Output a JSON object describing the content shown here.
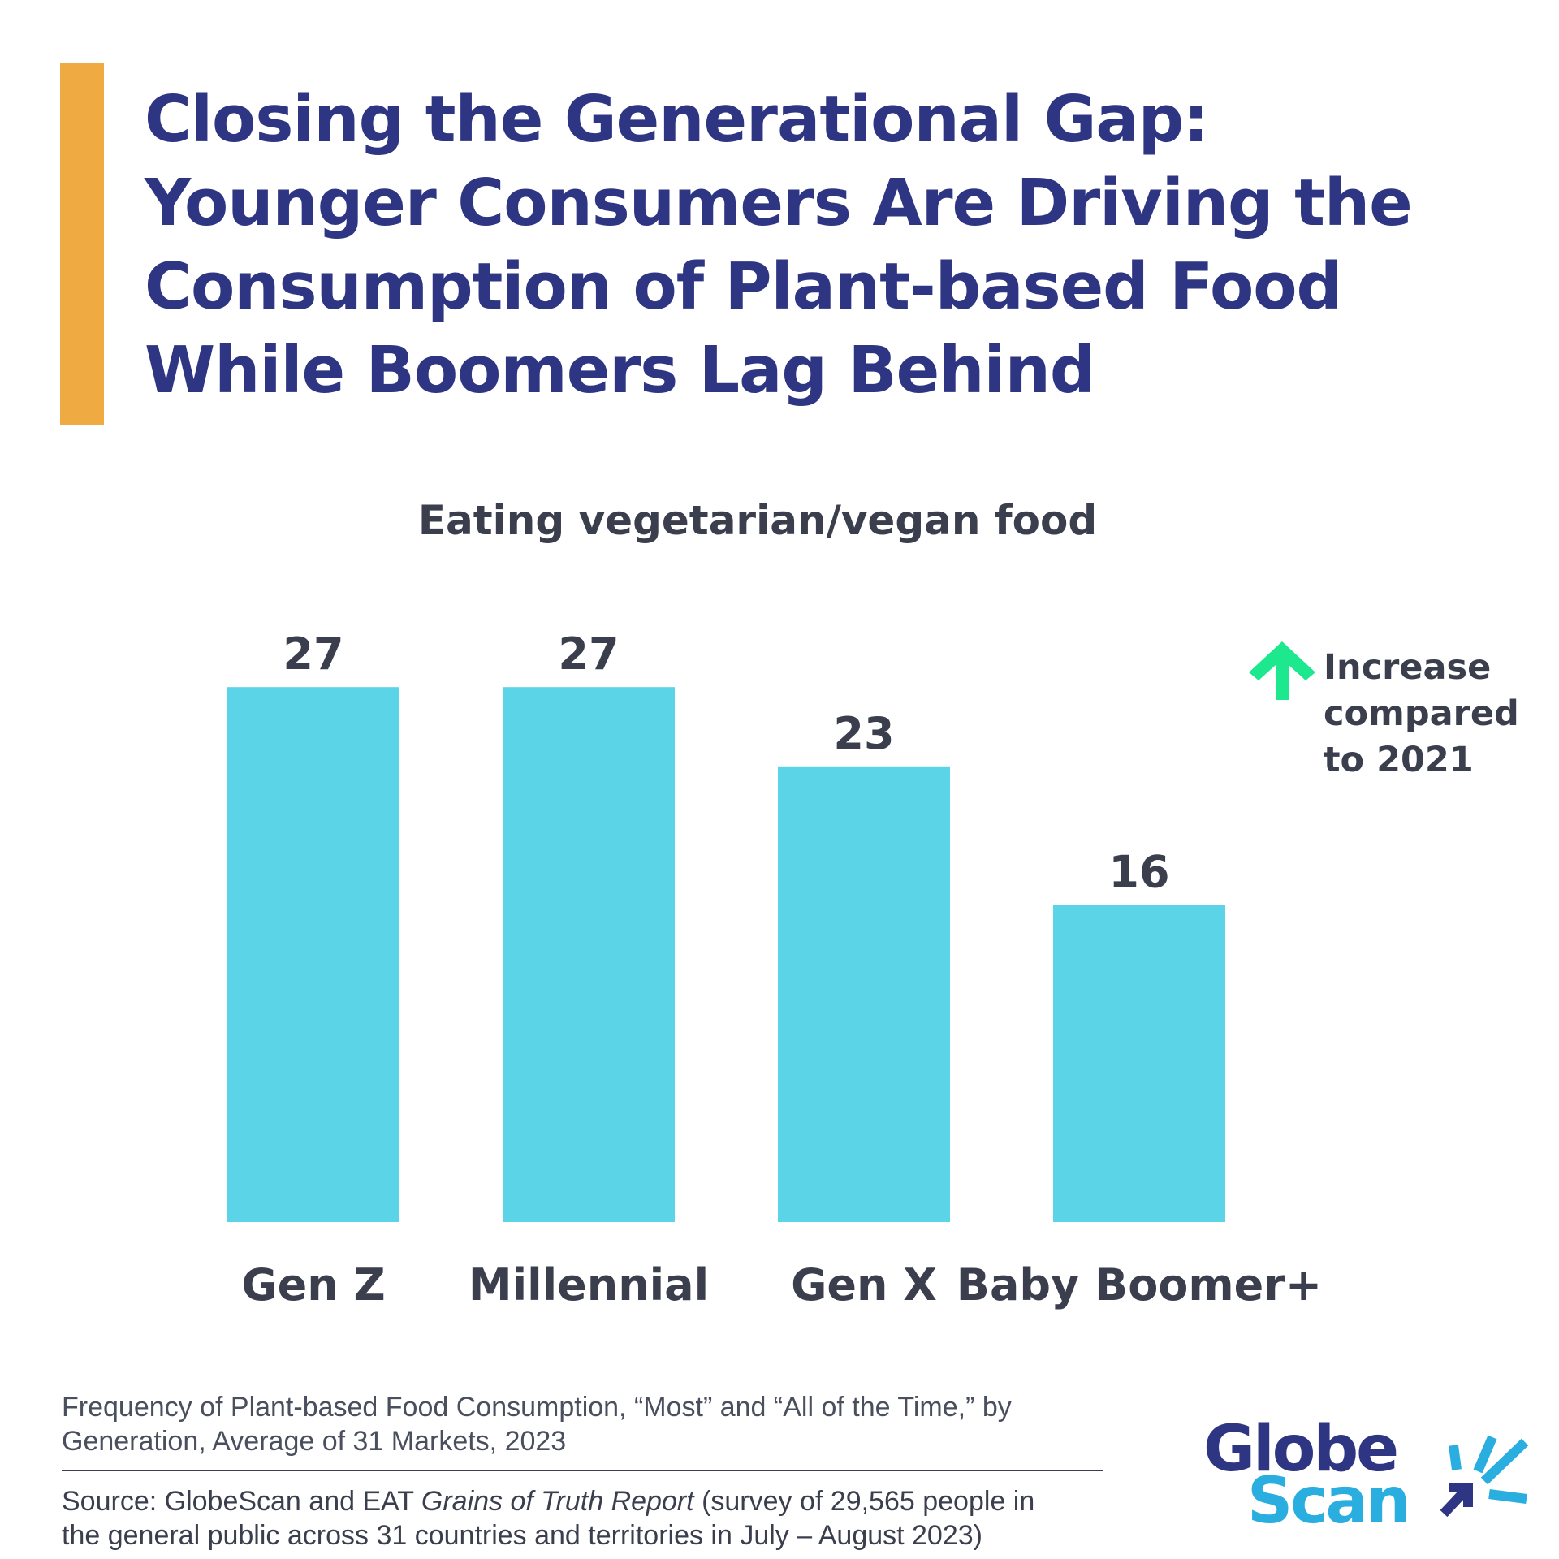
{
  "colors": {
    "accent_bar": "#EFAA42",
    "headline": "#2E3582",
    "bar": "#5AD4E6",
    "text_dark": "#3B3F4D",
    "increase_arrow": "#1EE88E",
    "logo_dark": "#2E3582",
    "logo_light": "#2AAEE0"
  },
  "headline": {
    "lines": [
      "Closing the Generational Gap:",
      "Younger Consumers Are Driving the",
      "Consumption of Plant-based Food",
      "While Boomers Lag Behind"
    ]
  },
  "chart_data": {
    "type": "bar",
    "title": "Eating vegetarian/vegan food",
    "categories": [
      "Gen Z",
      "Millennial",
      "Gen X",
      "Baby Boomer+"
    ],
    "values": [
      27,
      27,
      23,
      16
    ],
    "data_labels": [
      "27",
      "27",
      "23",
      "16"
    ],
    "xlabel": "",
    "ylabel": "",
    "ylim": [
      0,
      30
    ],
    "grid": false,
    "axis_visible": false
  },
  "legend": {
    "icon": "up-arrow-icon",
    "lines": [
      "Increase",
      "compared",
      "to 2021"
    ]
  },
  "footnote": {
    "lines": [
      "Frequency of Plant-based Food Consumption, “Most” and “All of the Time,” by",
      "Generation, Average of 31 Markets, 2023"
    ]
  },
  "source": {
    "prefix": "Source: GlobeScan and EAT ",
    "report_title": "Grains of Truth Report",
    "suffix": " (survey of 29,565 people in",
    "line2": "the general public across 31 countries and territories in July – August 2023)"
  },
  "logo": {
    "word1": "Globe",
    "word2": "Scan"
  }
}
